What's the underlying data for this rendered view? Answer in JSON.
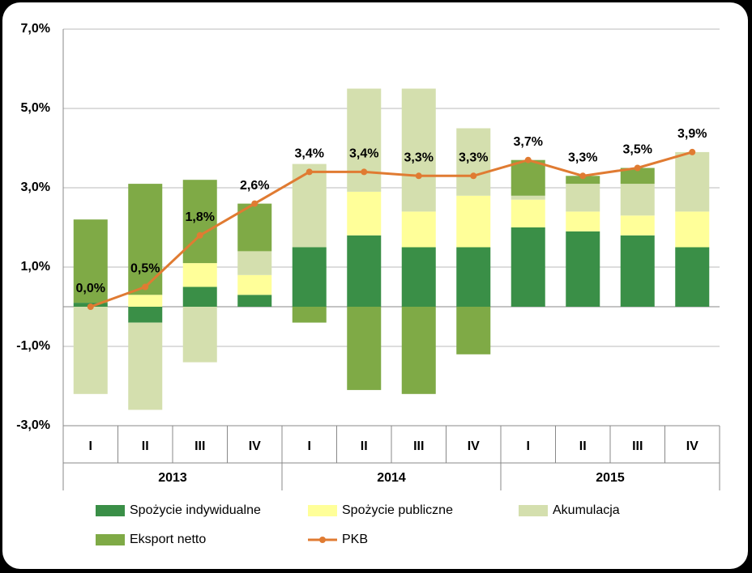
{
  "chart_data": {
    "type": "stacked-bar-line",
    "categories": [
      "I",
      "II",
      "III",
      "IV",
      "I",
      "II",
      "III",
      "IV",
      "I",
      "II",
      "III",
      "IV"
    ],
    "groups": [
      "2013",
      "2014",
      "2015"
    ],
    "ylim": [
      -3,
      7
    ],
    "yticks": [
      {
        "value": -3,
        "label": "-3,0%"
      },
      {
        "value": -1,
        "label": "-1,0%"
      },
      {
        "value": 1,
        "label": "1,0%"
      },
      {
        "value": 3,
        "label": "3,0%"
      },
      {
        "value": 5,
        "label": "5,0%"
      },
      {
        "value": 7,
        "label": "7,0%"
      }
    ],
    "grid": true,
    "series": [
      {
        "name": "Spożycie indywidualne",
        "type": "bar",
        "color": "#3a8f47",
        "values": [
          0.1,
          -0.4,
          0.5,
          0.3,
          1.5,
          1.8,
          1.5,
          1.5,
          2.0,
          1.9,
          1.8,
          1.5
        ]
      },
      {
        "name": "Spożycie publiczne",
        "type": "bar",
        "color": "#ffff99",
        "values": [
          0,
          0.3,
          0.6,
          0.5,
          0,
          1.1,
          0.9,
          1.3,
          0.7,
          0.5,
          0.5,
          0.9
        ]
      },
      {
        "name": "Akumulacja",
        "type": "bar",
        "color": "#d4dfae",
        "values": [
          -2.2,
          -2.2,
          -1.4,
          0.6,
          2.1,
          2.6,
          3.1,
          1.7,
          0.1,
          0.7,
          0.8,
          1.5
        ]
      },
      {
        "name": "Eksport netto",
        "type": "bar",
        "color": "#7faa46",
        "values": [
          2.1,
          2.8,
          2.1,
          1.2,
          -0.4,
          -2.1,
          -2.2,
          -1.2,
          0.9,
          0.2,
          0.4,
          0
        ]
      },
      {
        "name": "PKB",
        "type": "line",
        "color": "#e07b32",
        "values": [
          0.0,
          0.5,
          1.8,
          2.6,
          3.4,
          3.4,
          3.3,
          3.3,
          3.7,
          3.3,
          3.5,
          3.9
        ],
        "value_labels": [
          "0,0%",
          "0,5%",
          "1,8%",
          "2,6%",
          "3,4%",
          "3,4%",
          "3,3%",
          "3,3%",
          "3,7%",
          "3,3%",
          "3,5%",
          "3,9%"
        ]
      }
    ]
  }
}
